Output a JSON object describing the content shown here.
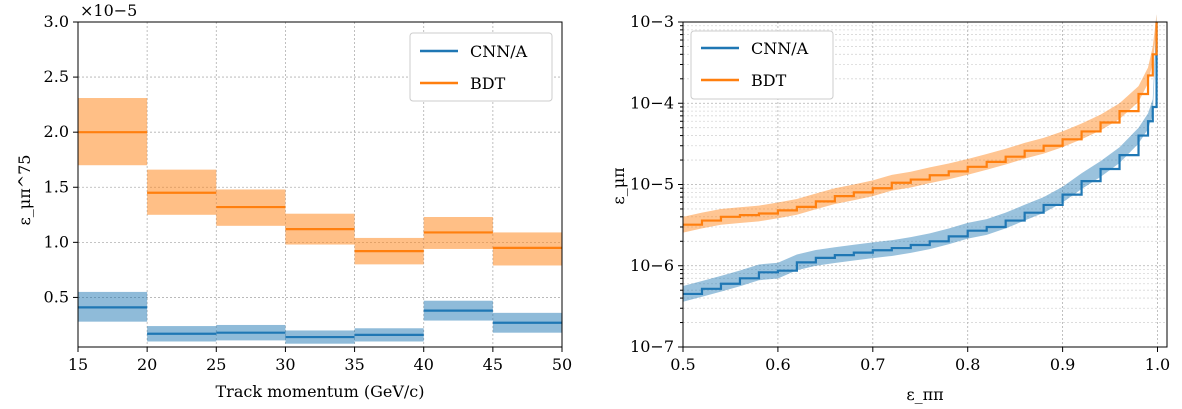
{
  "chart_data": [
    {
      "type": "step",
      "xlabel": "Track momentum (GeV/c)",
      "ylabel": "ε_μπ^75",
      "y_multiplier": "×10−5",
      "xlim": [
        15,
        50
      ],
      "ylim": [
        0.05,
        3.0
      ],
      "xticks": [
        "15",
        "20",
        "25",
        "30",
        "35",
        "40",
        "45",
        "50"
      ],
      "yticks": [
        "0.5",
        "1.0",
        "1.5",
        "2.0",
        "2.5",
        "3.0"
      ],
      "grid": true,
      "legend": "top-right",
      "bins": [
        [
          15,
          20
        ],
        [
          20,
          25
        ],
        [
          25,
          30
        ],
        [
          30,
          35
        ],
        [
          35,
          40
        ],
        [
          40,
          45
        ],
        [
          45,
          50
        ]
      ],
      "series": [
        {
          "name": "CNN/A",
          "color": "#1f77b4",
          "values": [
            0.41,
            0.17,
            0.18,
            0.14,
            0.16,
            0.38,
            0.27
          ],
          "lower": [
            0.28,
            0.1,
            0.11,
            0.08,
            0.1,
            0.29,
            0.18
          ],
          "upper": [
            0.55,
            0.24,
            0.25,
            0.2,
            0.22,
            0.47,
            0.36
          ]
        },
        {
          "name": "BDT",
          "color": "#ff7f0e",
          "values": [
            2.0,
            1.45,
            1.32,
            1.12,
            0.92,
            1.09,
            0.95
          ],
          "lower": [
            1.7,
            1.25,
            1.15,
            0.98,
            0.8,
            0.94,
            0.79
          ],
          "upper": [
            2.31,
            1.66,
            1.48,
            1.26,
            1.04,
            1.23,
            1.09
          ]
        }
      ]
    },
    {
      "type": "line",
      "xlabel": "ε_ππ",
      "ylabel": "ε_μπ",
      "xlim": [
        0.5,
        1.01
      ],
      "ylim": [
        1e-07,
        0.001
      ],
      "yscale": "log",
      "xticks": [
        "0.5",
        "0.6",
        "0.7",
        "0.8",
        "0.9",
        "1.0"
      ],
      "yticks": [
        "10−7",
        "10−6",
        "10−5",
        "10−4",
        "10−3"
      ],
      "grid": true,
      "legend": "top-left",
      "series": [
        {
          "name": "CNN/A",
          "color": "#1f77b4",
          "x": [
            0.5,
            0.52,
            0.54,
            0.56,
            0.58,
            0.6,
            0.62,
            0.64,
            0.66,
            0.68,
            0.7,
            0.72,
            0.74,
            0.76,
            0.78,
            0.8,
            0.82,
            0.84,
            0.86,
            0.88,
            0.9,
            0.92,
            0.94,
            0.96,
            0.98,
            0.99,
            0.995,
            0.999
          ],
          "y": [
            4.5e-07,
            5.2e-07,
            6e-07,
            7e-07,
            8.3e-07,
            8.7e-07,
            1.1e-06,
            1.25e-06,
            1.35e-06,
            1.45e-06,
            1.55e-06,
            1.65e-06,
            1.8e-06,
            2e-06,
            2.3e-06,
            2.7e-06,
            3e-06,
            3.6e-06,
            4.5e-06,
            5.6e-06,
            7.5e-06,
            1.1e-05,
            1.55e-05,
            2.3e-05,
            4e-05,
            6e-05,
            9e-05,
            0.001
          ]
        },
        {
          "name": "BDT",
          "color": "#ff7f0e",
          "x": [
            0.5,
            0.52,
            0.54,
            0.56,
            0.58,
            0.6,
            0.62,
            0.64,
            0.66,
            0.68,
            0.7,
            0.72,
            0.74,
            0.76,
            0.78,
            0.8,
            0.82,
            0.84,
            0.86,
            0.88,
            0.9,
            0.92,
            0.94,
            0.96,
            0.98,
            0.99,
            0.995,
            0.999
          ],
          "y": [
            3.2e-06,
            3.6e-06,
            4e-06,
            4.2e-06,
            4.4e-06,
            4.8e-06,
            5.3e-06,
            6.2e-06,
            7.2e-06,
            8e-06,
            9e-06,
            1.05e-05,
            1.15e-05,
            1.3e-05,
            1.45e-05,
            1.65e-05,
            1.9e-05,
            2.2e-05,
            2.6e-05,
            3e-05,
            3.6e-05,
            4.5e-05,
            5.8e-05,
            8e-05,
            0.00013,
            0.00022,
            0.0004,
            0.001
          ]
        }
      ]
    }
  ]
}
